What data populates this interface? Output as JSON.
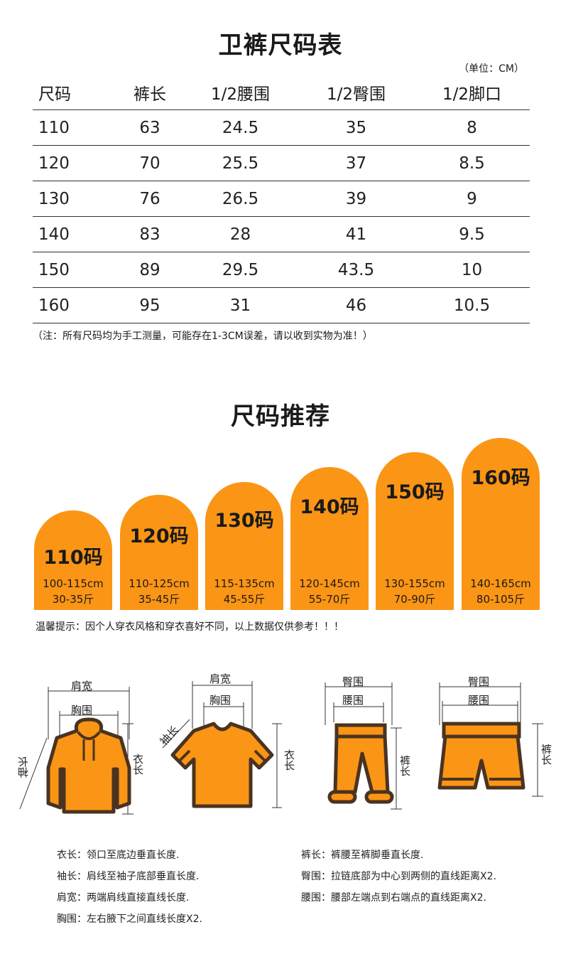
{
  "table_section": {
    "title": "卫裤尺码表",
    "unit": "（单位：CM）",
    "headers": [
      "尺码",
      "裤长",
      "1/2腰围",
      "1/2臀围",
      "1/2脚口"
    ],
    "rows": [
      [
        "110",
        "63",
        "24.5",
        "35",
        "8"
      ],
      [
        "120",
        "70",
        "25.5",
        "37",
        "8.5"
      ],
      [
        "130",
        "76",
        "26.5",
        "39",
        "9"
      ],
      [
        "140",
        "83",
        "28",
        "41",
        "9.5"
      ],
      [
        "150",
        "89",
        "29.5",
        "43.5",
        "10"
      ],
      [
        "160",
        "95",
        "31",
        "46",
        "10.5"
      ]
    ],
    "note": "（注：所有尺码均为手工测量，可能存在1-3CM误差，请以收到实物为准！）"
  },
  "recommend_section": {
    "title": "尺码推荐",
    "accent_color": "#fb9515",
    "sizes": [
      {
        "label": "110码",
        "height": "100-115cm",
        "weight": "30-35斤"
      },
      {
        "label": "120码",
        "height": "110-125cm",
        "weight": "35-45斤"
      },
      {
        "label": "130码",
        "height": "115-135cm",
        "weight": "45-55斤"
      },
      {
        "label": "140码",
        "height": "120-145cm",
        "weight": "55-70斤"
      },
      {
        "label": "150码",
        "height": "130-155cm",
        "weight": "70-90斤"
      },
      {
        "label": "160码",
        "height": "140-165cm",
        "weight": "80-105斤"
      }
    ],
    "tip": "温馨提示：因个人穿衣风格和穿衣喜好不同，以上数据仅供参考！！！"
  },
  "measure_section": {
    "hoodie": {
      "shoulder": "肩宽",
      "chest": "胸围",
      "sleeve": "袖长",
      "length": "衣长",
      "icon": "hoodie-icon"
    },
    "tshirt": {
      "shoulder": "肩宽",
      "chest": "胸围",
      "sleeve": "袖长",
      "length": "衣长",
      "icon": "tshirt-icon"
    },
    "pants": {
      "hip": "臀围",
      "waist": "腰围",
      "length": "裤长",
      "icon": "pants-icon"
    },
    "shorts": {
      "hip": "臀围",
      "waist": "腰围",
      "length": "裤长",
      "icon": "shorts-icon"
    },
    "definitions_left": [
      {
        "term": "衣长：",
        "desc": "领口至底边垂直长度."
      },
      {
        "term": "袖长：",
        "desc": "肩线至袖子底部垂直长度."
      },
      {
        "term": "肩宽：",
        "desc": "两端肩线直接直线长度."
      },
      {
        "term": "胸围：",
        "desc": "左右腋下之间直线长度X2."
      }
    ],
    "definitions_right": [
      {
        "term": "裤长：",
        "desc": "裤腰至裤脚垂直长度."
      },
      {
        "term": "臀围：",
        "desc": "拉链底部为中心到两侧的直线距离X2."
      },
      {
        "term": "腰围：",
        "desc": "腰部左端点到右端点的直线距离X2."
      }
    ]
  }
}
